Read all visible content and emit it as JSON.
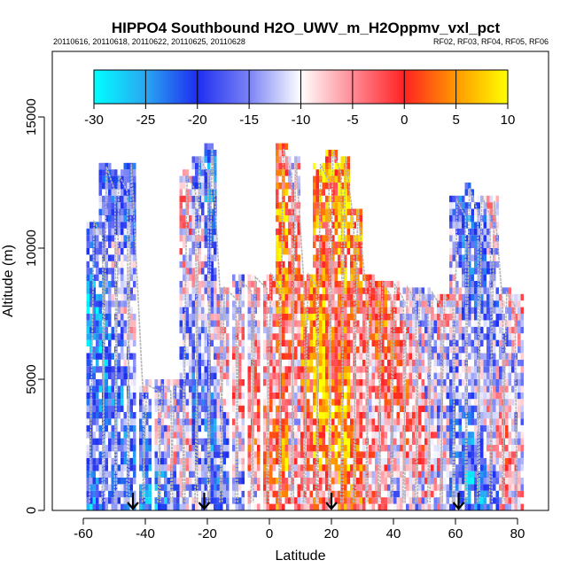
{
  "chart_data": {
    "type": "heatmap",
    "title": "HIPPO4 Southbound H2O_UWV_m_H2Oppmv_vxl_pct",
    "subtitle_left": "20110616, 20110618, 20110622, 20110625, 20110628",
    "subtitle_right": "RF02, RF03, RF04, RF05, RF06",
    "xlabel": "Latitude",
    "ylabel": "Altitude (m)",
    "xlim": [
      -70,
      90
    ],
    "ylim": [
      0,
      17500
    ],
    "xticks": [
      "-60",
      "-40",
      "-20",
      "0",
      "20",
      "40",
      "60",
      "80"
    ],
    "yticks": [
      "0",
      "5000",
      "10000",
      "15000"
    ],
    "colorbar": {
      "range": [
        -30,
        10
      ],
      "ticks": [
        "-30",
        "-25",
        "-20",
        "-15",
        "-10",
        "-5",
        "0",
        "5",
        "10"
      ],
      "stops": [
        {
          "v": -30,
          "c": "#00ffff"
        },
        {
          "v": -25,
          "c": "#2aa6f2"
        },
        {
          "v": -20,
          "c": "#1e2ef0"
        },
        {
          "v": -15,
          "c": "#7a83f5"
        },
        {
          "v": -10,
          "c": "#ffffff"
        },
        {
          "v": -5,
          "c": "#ff8a96"
        },
        {
          "v": 0,
          "c": "#ff2222"
        },
        {
          "v": 5,
          "c": "#ff9900"
        },
        {
          "v": 10,
          "c": "#ffff00"
        }
      ]
    },
    "profile_columns": [
      {
        "lat": -57,
        "top": 11000,
        "bias": -20
      },
      {
        "lat": -53,
        "top": 13100,
        "bias": -19
      },
      {
        "lat": -49,
        "top": 12800,
        "bias": -16
      },
      {
        "lat": -45,
        "top": 13200,
        "bias": -15
      },
      {
        "lat": -40,
        "top": 4800,
        "bias": -16
      },
      {
        "lat": -35,
        "top": 4800,
        "bias": -15
      },
      {
        "lat": -31,
        "top": 4800,
        "bias": -13
      },
      {
        "lat": -27,
        "top": 12800,
        "bias": -11
      },
      {
        "lat": -23,
        "top": 13500,
        "bias": -15
      },
      {
        "lat": -19,
        "top": 13800,
        "bias": -16
      },
      {
        "lat": -15,
        "top": 8500,
        "bias": -12
      },
      {
        "lat": -10,
        "top": 8800,
        "bias": -9
      },
      {
        "lat": -5,
        "top": 8900,
        "bias": -6
      },
      {
        "lat": 0,
        "top": 9000,
        "bias": -4
      },
      {
        "lat": 4,
        "top": 13800,
        "bias": 2
      },
      {
        "lat": 8,
        "top": 13500,
        "bias": -5
      },
      {
        "lat": 12,
        "top": 9000,
        "bias": 0
      },
      {
        "lat": 16,
        "top": 13200,
        "bias": 5
      },
      {
        "lat": 20,
        "top": 13700,
        "bias": 1
      },
      {
        "lat": 24,
        "top": 13500,
        "bias": 4
      },
      {
        "lat": 28,
        "top": 11500,
        "bias": -1
      },
      {
        "lat": 32,
        "top": 8800,
        "bias": -4
      },
      {
        "lat": 36,
        "top": 8700,
        "bias": -3
      },
      {
        "lat": 40,
        "top": 8600,
        "bias": -6
      },
      {
        "lat": 44,
        "top": 8500,
        "bias": -6
      },
      {
        "lat": 48,
        "top": 8400,
        "bias": -8
      },
      {
        "lat": 52,
        "top": 8300,
        "bias": -9
      },
      {
        "lat": 56,
        "top": 8200,
        "bias": -9
      },
      {
        "lat": 60,
        "top": 11800,
        "bias": -14
      },
      {
        "lat": 64,
        "top": 12300,
        "bias": -17
      },
      {
        "lat": 68,
        "top": 12000,
        "bias": -15
      },
      {
        "lat": 72,
        "top": 11800,
        "bias": -12
      },
      {
        "lat": 76,
        "top": 8300,
        "bias": -8
      },
      {
        "lat": 80,
        "top": 8200,
        "bias": -9
      }
    ],
    "flight_markers_lat": [
      -44,
      -21,
      20,
      61
    ],
    "grid": false,
    "legend": "top-colorbar"
  }
}
